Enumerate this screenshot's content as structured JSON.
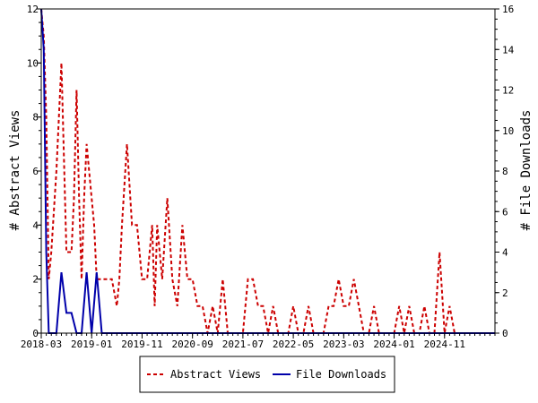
{
  "chart_data": {
    "type": "line",
    "ylabel": "# Abstract Views",
    "y2label": "# File Downloads",
    "x_tick_labels": [
      "2018-03",
      "2019-01",
      "2019-11",
      "2020-09",
      "2021-07",
      "2022-05",
      "2023-03",
      "2024-01",
      "2024-11"
    ],
    "x_tick_months": [
      0,
      10,
      20,
      30,
      40,
      50,
      60,
      70,
      80
    ],
    "x_range_months": [
      0,
      90
    ],
    "ylim": [
      0,
      12
    ],
    "y_ticks": [
      0,
      2,
      4,
      6,
      8,
      10,
      12
    ],
    "y2lim": [
      0,
      16
    ],
    "y2_ticks": [
      0,
      2,
      4,
      6,
      8,
      10,
      12,
      14,
      16
    ],
    "grid": false,
    "legend_position": "bottom",
    "series": [
      {
        "name": "Abstract Views",
        "axis": "left",
        "color": "#cc0000",
        "dash": "dashed",
        "x": [
          0,
          0.5,
          1,
          1.5,
          2,
          3,
          3.5,
          4,
          5,
          6,
          6.5,
          7,
          7.5,
          8,
          8.5,
          9,
          9.5,
          10,
          10.5,
          11,
          12,
          13,
          14,
          15,
          15.5,
          16,
          17,
          18,
          19,
          20,
          21,
          22,
          22.5,
          23,
          24,
          25,
          26,
          27,
          28,
          29,
          30,
          31,
          32,
          33,
          34,
          35,
          36,
          37,
          38,
          39,
          40,
          41,
          42,
          43,
          44,
          45,
          46,
          47,
          48,
          49,
          50,
          51,
          52,
          53,
          54,
          55,
          56,
          57,
          58,
          59,
          60,
          61,
          62,
          63,
          64,
          65,
          66,
          67,
          68,
          69,
          70,
          71,
          72,
          73,
          74,
          75,
          76,
          77,
          78,
          79,
          80,
          81,
          82,
          83,
          84,
          85,
          86,
          87,
          88,
          89,
          90
        ],
        "y": [
          12,
          11,
          8,
          2,
          3,
          6,
          8,
          10,
          3,
          3,
          5,
          9,
          5,
          2,
          5,
          7,
          6,
          5,
          4,
          2,
          2,
          2,
          2,
          1,
          2,
          4,
          7,
          4,
          4,
          2,
          2,
          4,
          1,
          4,
          2,
          5,
          2,
          1,
          4,
          2,
          2,
          1,
          1,
          0,
          1,
          0,
          2,
          0,
          0,
          0,
          0,
          2,
          2,
          1,
          1,
          0,
          1,
          0,
          0,
          0,
          1,
          0,
          0,
          1,
          0,
          0,
          0,
          1,
          1,
          2,
          1,
          1,
          2,
          1,
          0,
          0,
          1,
          0,
          0,
          0,
          0,
          1,
          0,
          1,
          0,
          0,
          1,
          0,
          0,
          3,
          0,
          1,
          0,
          0,
          0,
          0,
          0,
          0,
          0,
          0,
          0
        ]
      },
      {
        "name": "File Downloads",
        "axis": "right",
        "color": "#0000aa",
        "dash": "solid",
        "x": [
          0,
          0.5,
          1,
          1.5,
          2,
          3,
          4,
          5,
          6,
          7,
          8,
          9,
          10,
          11,
          12,
          13,
          90
        ],
        "y": [
          16,
          14,
          4,
          0,
          0,
          0,
          3,
          1,
          1,
          0,
          0,
          3,
          0,
          3,
          0,
          0,
          0
        ]
      }
    ]
  }
}
